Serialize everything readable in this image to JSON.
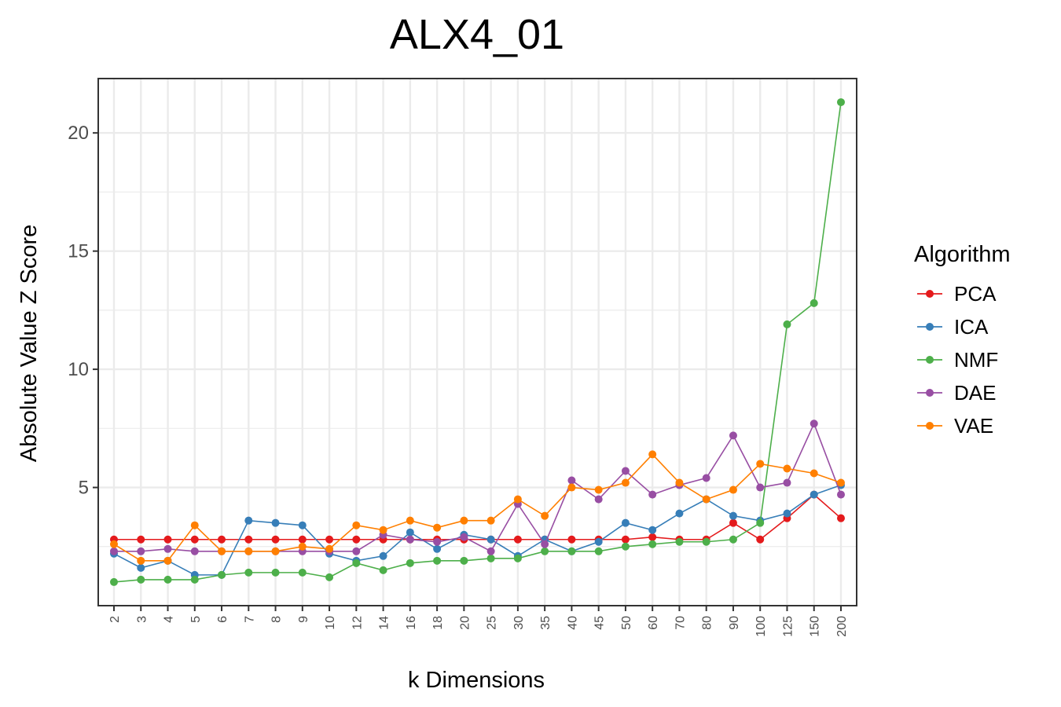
{
  "chart_data": {
    "type": "line",
    "title": "ALX4_01",
    "xlabel": "k Dimensions",
    "ylabel": "Absolute Value Z Score",
    "categories": [
      "2",
      "3",
      "4",
      "5",
      "6",
      "7",
      "8",
      "9",
      "10",
      "12",
      "14",
      "16",
      "18",
      "20",
      "25",
      "30",
      "35",
      "40",
      "45",
      "50",
      "60",
      "70",
      "80",
      "90",
      "100",
      "125",
      "150",
      "200"
    ],
    "ylim": [
      0,
      22.3
    ],
    "yticks": [
      5,
      10,
      15,
      20
    ],
    "grid": true,
    "legend": {
      "title": "Algorithm",
      "position": "right"
    },
    "series": [
      {
        "name": "PCA",
        "color": "#e41a1c",
        "values": [
          2.8,
          2.8,
          2.8,
          2.8,
          2.8,
          2.8,
          2.8,
          2.8,
          2.8,
          2.8,
          2.8,
          2.8,
          2.8,
          2.8,
          2.8,
          2.8,
          2.8,
          2.8,
          2.8,
          2.8,
          2.9,
          2.8,
          2.8,
          3.5,
          2.8,
          3.7,
          4.7,
          3.7
        ]
      },
      {
        "name": "ICA",
        "color": "#377eb8",
        "values": [
          2.2,
          1.6,
          1.9,
          1.3,
          1.3,
          3.6,
          3.5,
          3.4,
          2.2,
          1.9,
          2.1,
          3.1,
          2.4,
          3.0,
          2.8,
          2.1,
          2.8,
          2.3,
          2.7,
          3.5,
          3.2,
          3.9,
          4.5,
          3.8,
          3.6,
          3.9,
          4.7,
          5.1
        ]
      },
      {
        "name": "NMF",
        "color": "#4daf4a",
        "values": [
          1.0,
          1.1,
          1.1,
          1.1,
          1.3,
          1.4,
          1.4,
          1.4,
          1.2,
          1.8,
          1.5,
          1.8,
          1.9,
          1.9,
          2.0,
          2.0,
          2.3,
          2.3,
          2.3,
          2.5,
          2.6,
          2.7,
          2.7,
          2.8,
          3.5,
          11.9,
          12.8,
          21.3
        ]
      },
      {
        "name": "DAE",
        "color": "#984ea3",
        "values": [
          2.3,
          2.3,
          2.4,
          2.3,
          2.3,
          2.3,
          2.3,
          2.3,
          2.3,
          2.3,
          3.0,
          2.8,
          2.7,
          2.9,
          2.3,
          4.3,
          2.6,
          5.3,
          4.5,
          5.7,
          4.7,
          5.1,
          5.4,
          7.2,
          5.0,
          5.2,
          7.7,
          4.7
        ]
      },
      {
        "name": "VAE",
        "color": "#ff7f00",
        "values": [
          2.6,
          1.9,
          1.9,
          3.4,
          2.3,
          2.3,
          2.3,
          2.5,
          2.4,
          3.4,
          3.2,
          3.6,
          3.3,
          3.6,
          3.6,
          4.5,
          3.8,
          5.0,
          4.9,
          5.2,
          6.4,
          5.2,
          4.5,
          4.9,
          6.0,
          5.8,
          5.6,
          5.2
        ]
      }
    ]
  }
}
